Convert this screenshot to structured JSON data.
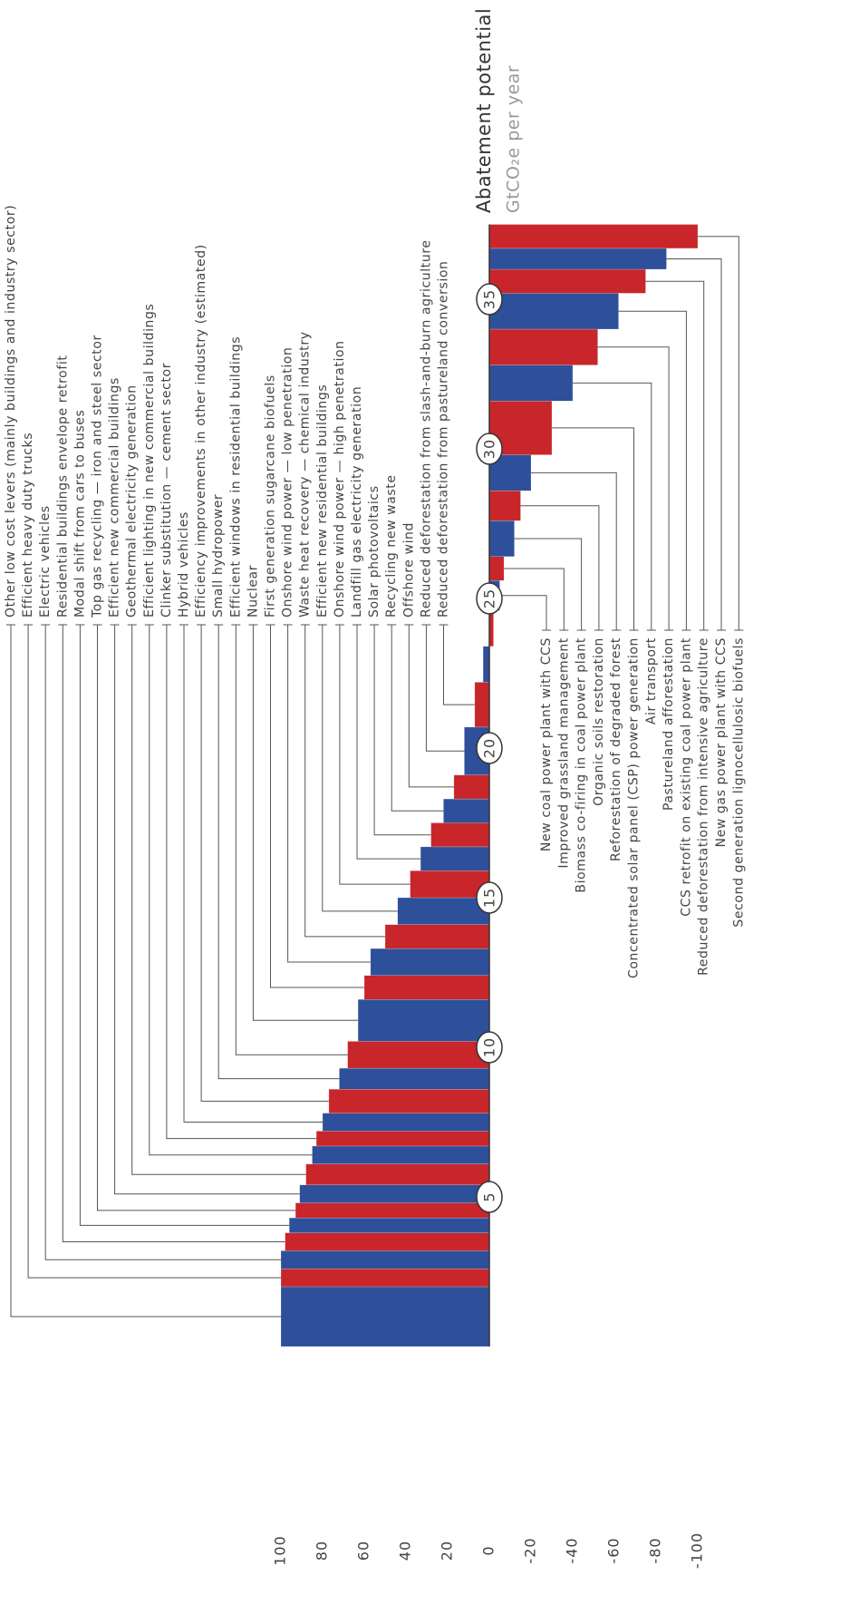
{
  "chart_data": {
    "type": "bar",
    "title": "Abatement potential",
    "subtitle": "GtCO₂e per year",
    "categories": [
      "Other low cost levers (mainly buildings and industry sector)",
      "Efficient heavy duty trucks",
      "Electric vehicles",
      "Residential buildings envelope retrofit",
      "Modal shift from cars to buses",
      "Top gas recycling — iron and steel sector",
      "Efficient new commercial buildings",
      "Geothermal electricity generation",
      "Efficient lighting in new commercial buildings",
      "Clinker substitution — cement sector",
      "Hybrid vehicles",
      "Efficiency improvements in other industry (estimated)",
      "Small hydropower",
      "Efficient windows in residential buildings",
      "Nuclear",
      "First generation sugarcane biofuels",
      "Onshore wind power — low penetration",
      "Waste heat recovery — chemical industry",
      "Efficient new residential buildings",
      "Onshore wind power — high penetration",
      "Landfill gas electricity  generation",
      "Solar photovoltaics",
      "Recycling new waste",
      "Offshore wind",
      "Reduced deforestation from slash-and-burn agriculture",
      "Reduced deforestation from pastureland conversion",
      null,
      null,
      "New coal power plant with CCS",
      "Improved grassland management",
      "Biomass co-firing in coal power plant",
      "Organic soils restoration",
      "Reforestation of degraded forest",
      "Concentrated solar panel (CSP) power generation",
      "Air transport",
      "Pastureland afforestation",
      "CCS retrofit on existing coal power plant",
      "Reduced deforestation from intensive agriculture",
      "New gas power plant with CCS",
      "Second generation lignocellulosic biofuels"
    ],
    "values": [
      100,
      100,
      100,
      98,
      96,
      93,
      91,
      88,
      85,
      83,
      80,
      77,
      72,
      68,
      63,
      60,
      57,
      50,
      44,
      38,
      33,
      28,
      22,
      17,
      12,
      7,
      3,
      -2,
      -5,
      -7,
      -12,
      -15,
      -20,
      -30,
      -40,
      -52,
      -62,
      -75,
      -85,
      -100
    ],
    "widths": [
      2.0,
      0.6,
      0.6,
      0.6,
      0.5,
      0.5,
      0.6,
      0.7,
      0.6,
      0.5,
      0.6,
      0.8,
      0.7,
      0.9,
      1.4,
      0.8,
      0.9,
      0.8,
      0.9,
      0.9,
      0.8,
      0.8,
      0.8,
      0.8,
      1.6,
      1.5,
      1.2,
      1.2,
      1.0,
      0.8,
      1.2,
      1.0,
      1.2,
      1.8,
      1.2,
      1.2,
      1.2,
      0.8,
      0.7,
      0.8
    ],
    "colors": [
      "#2e509a",
      "#c8262a"
    ],
    "xlim": [
      0,
      37.5
    ],
    "xticks": [
      5,
      10,
      15,
      20,
      25,
      30,
      35
    ],
    "ylim": [
      -100,
      100
    ],
    "yticks": [
      100,
      80,
      60,
      40,
      20,
      0,
      -20,
      -40,
      -60,
      -80,
      -100
    ],
    "grid": false
  }
}
